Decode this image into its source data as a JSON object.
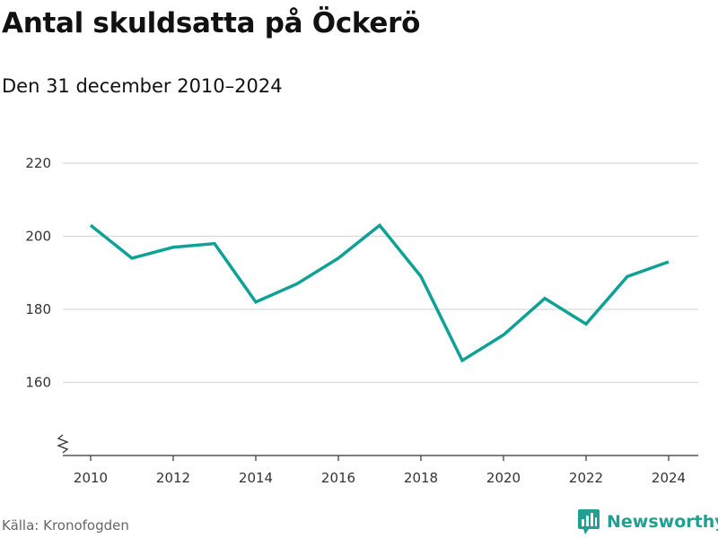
{
  "header": {
    "title": "Antal skuldsatta på Öckerö",
    "subtitle": "Den 31 december 2010–2024"
  },
  "footer": {
    "source": "Källa: Kronofogden",
    "brand": "Newsworthy"
  },
  "colors": {
    "line": "#0fa196",
    "grid": "#d9d9d9",
    "axis": "#333333",
    "brand": "#20a090"
  },
  "chart_data": {
    "type": "line",
    "title": "Antal skuldsatta på Öckerö",
    "subtitle": "Den 31 december 2010–2024",
    "xlabel": "",
    "ylabel": "",
    "x": [
      2010,
      2011,
      2012,
      2013,
      2014,
      2015,
      2016,
      2017,
      2018,
      2019,
      2020,
      2021,
      2022,
      2023,
      2024
    ],
    "series": [
      {
        "name": "Antal skuldsatta",
        "values": [
          203,
          194,
          197,
          198,
          182,
          187,
          194,
          203,
          189,
          166,
          173,
          183,
          176,
          189,
          193
        ]
      }
    ],
    "ylim": [
      140,
      220
    ],
    "yticks": [
      160,
      180,
      200,
      220
    ],
    "xticks": [
      2010,
      2012,
      2014,
      2016,
      2018,
      2020,
      2022,
      2024
    ],
    "grid": true,
    "axis_break": true
  }
}
